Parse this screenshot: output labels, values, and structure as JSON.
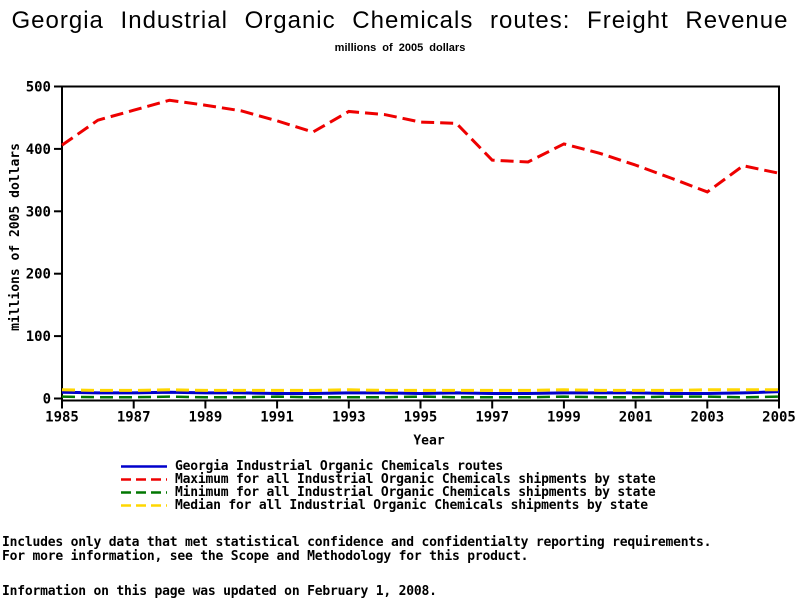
{
  "page": {
    "title": "Georgia Industrial Organic Chemicals routes: Freight Revenue",
    "subtitle": "millions of 2005 dollars",
    "footnotes": [
      "Includes only data that met statistical confidence and confidentialty reporting requirements.",
      "For more information, see the Scope and Methodology for this product."
    ],
    "updated_note": "Information on this page was updated on February 1, 2008."
  },
  "chart_data": {
    "type": "line",
    "title": "Georgia Industrial Organic Chemicals routes: Freight Revenue",
    "subtitle": "millions of 2005 dollars",
    "xlabel": "Year",
    "ylabel": "millions of 2005 dollars",
    "x": [
      1985,
      1986,
      1987,
      1988,
      1989,
      1990,
      1991,
      1992,
      1993,
      1994,
      1995,
      1996,
      1997,
      1998,
      1999,
      2000,
      2001,
      2002,
      2003,
      2004,
      2005
    ],
    "x_ticks": [
      1985,
      1987,
      1989,
      1991,
      1993,
      1995,
      1997,
      1999,
      2001,
      2003,
      2005
    ],
    "ylim": [
      0,
      500
    ],
    "y_ticks": [
      0,
      100,
      200,
      300,
      400,
      500
    ],
    "grid": false,
    "legend_position": "bottom",
    "series": [
      {
        "id": "georgia",
        "name": "Georgia Industrial Organic Chemicals routes",
        "color": "#0000CC",
        "style": "solid",
        "values": [
          10,
          9,
          9,
          10,
          9,
          9,
          8,
          8,
          9,
          9,
          8,
          9,
          8,
          8,
          9,
          9,
          9,
          8,
          8,
          9,
          11
        ]
      },
      {
        "id": "maximum",
        "name": "Maximum for all Industrial Organic Chemicals shipments by state",
        "color": "#EE0000",
        "style": "dashed",
        "values": [
          406,
          446,
          462,
          478,
          470,
          461,
          445,
          427,
          460,
          455,
          443,
          441,
          382,
          379,
          408,
          393,
          374,
          353,
          331,
          373,
          361
        ]
      },
      {
        "id": "minimum",
        "name": "Minimum for all Industrial Organic Chemicals shipments by state",
        "color": "#007700",
        "style": "dashed",
        "values": [
          3,
          2,
          2,
          3,
          2,
          2,
          3,
          2,
          2,
          2,
          3,
          2,
          2,
          2,
          3,
          2,
          2,
          3,
          3,
          2,
          3
        ]
      },
      {
        "id": "median",
        "name": "Median for all Industrial Organic Chemicals shipments by state",
        "color": "#FFD700",
        "style": "dashed",
        "values": [
          14,
          13,
          13,
          14,
          13,
          13,
          13,
          13,
          14,
          13,
          13,
          13,
          13,
          13,
          14,
          13,
          13,
          13,
          14,
          14,
          14
        ]
      }
    ]
  }
}
